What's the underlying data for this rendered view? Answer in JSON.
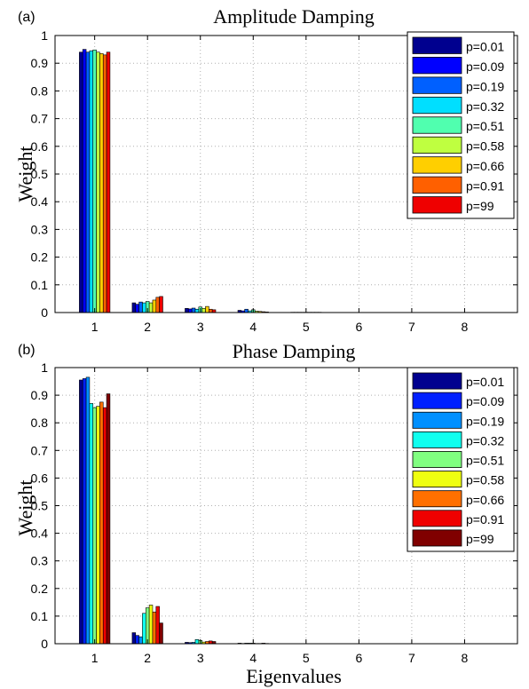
{
  "chart_data": [
    {
      "type": "bar",
      "panel_label": "(a)",
      "title": "Amplitude Damping",
      "xlabel": "",
      "ylabel": "Weight",
      "ylim": [
        0,
        1
      ],
      "yticks": [
        "0",
        "0.1",
        "0.2",
        "0.3",
        "0.4",
        "0.5",
        "0.6",
        "0.7",
        "0.8",
        "0.9",
        "1"
      ],
      "categories": [
        "1",
        "2",
        "3",
        "4",
        "5",
        "6",
        "7",
        "8"
      ],
      "grid": true,
      "legend_position": "top-right",
      "series": [
        {
          "name": "p=0.01",
          "color": "#00008f",
          "values": [
            0.94,
            0.035,
            0.015,
            0.008,
            0.001,
            0.0005,
            0.0003,
            0.0002
          ]
        },
        {
          "name": "p=0.09",
          "color": "#0000ff",
          "values": [
            0.95,
            0.03,
            0.013,
            0.006,
            0.001,
            0.0005,
            0.0003,
            0.0002
          ]
        },
        {
          "name": "p=0.19",
          "color": "#0060ff",
          "values": [
            0.94,
            0.038,
            0.016,
            0.012,
            0.001,
            0.0005,
            0.0003,
            0.0002
          ]
        },
        {
          "name": "p=0.32",
          "color": "#00dfff",
          "values": [
            0.945,
            0.035,
            0.012,
            0.006,
            0.001,
            0.0005,
            0.0003,
            0.0002
          ]
        },
        {
          "name": "p=0.51",
          "color": "#50ffaf",
          "values": [
            0.948,
            0.04,
            0.02,
            0.01,
            0.001,
            0.0005,
            0.0003,
            0.0002
          ]
        },
        {
          "name": "p=0.58",
          "color": "#bfff40",
          "values": [
            0.94,
            0.035,
            0.015,
            0.005,
            0.001,
            0.0005,
            0.0003,
            0.0002
          ]
        },
        {
          "name": "p=0.66",
          "color": "#ffcf00",
          "values": [
            0.935,
            0.045,
            0.022,
            0.004,
            0.001,
            0.0005,
            0.0003,
            0.0002
          ]
        },
        {
          "name": "p=0.91",
          "color": "#ff6000",
          "values": [
            0.93,
            0.055,
            0.012,
            0.003,
            0.001,
            0.0005,
            0.0003,
            0.0002
          ]
        },
        {
          "name": "p=99",
          "color": "#ef0000",
          "values": [
            0.94,
            0.058,
            0.01,
            0.002,
            0.001,
            0.0005,
            0.0003,
            0.0002
          ]
        }
      ]
    },
    {
      "type": "bar",
      "panel_label": "(b)",
      "title": "Phase Damping",
      "xlabel": "Eigenvalues",
      "ylabel": "Weight",
      "ylim": [
        0,
        1
      ],
      "yticks": [
        "0",
        "0.1",
        "0.2",
        "0.3",
        "0.4",
        "0.5",
        "0.6",
        "0.7",
        "0.8",
        "0.9",
        "1"
      ],
      "categories": [
        "1",
        "2",
        "3",
        "4",
        "5",
        "6",
        "7",
        "8"
      ],
      "grid": true,
      "legend_position": "top-right",
      "series": [
        {
          "name": "p=0.01",
          "color": "#00008f",
          "values": [
            0.955,
            0.04,
            0.005,
            0.002,
            0.0005,
            0.0003,
            0.0002,
            0.0001
          ]
        },
        {
          "name": "p=0.09",
          "color": "#0020ff",
          "values": [
            0.96,
            0.03,
            0.004,
            0.001,
            0.0005,
            0.0003,
            0.0002,
            0.0001
          ]
        },
        {
          "name": "p=0.19",
          "color": "#0090ff",
          "values": [
            0.965,
            0.025,
            0.005,
            0.002,
            0.0005,
            0.0003,
            0.0002,
            0.0001
          ]
        },
        {
          "name": "p=0.32",
          "color": "#10ffef",
          "values": [
            0.87,
            0.11,
            0.015,
            0.002,
            0.0005,
            0.0003,
            0.0002,
            0.0001
          ]
        },
        {
          "name": "p=0.51",
          "color": "#80ff80",
          "values": [
            0.855,
            0.13,
            0.012,
            0.002,
            0.0005,
            0.0003,
            0.0002,
            0.0001
          ]
        },
        {
          "name": "p=0.58",
          "color": "#efff10",
          "values": [
            0.86,
            0.14,
            0.006,
            0.001,
            0.0005,
            0.0003,
            0.0002,
            0.0001
          ]
        },
        {
          "name": "p=0.66",
          "color": "#ff7000",
          "values": [
            0.875,
            0.115,
            0.008,
            0.001,
            0.0005,
            0.0003,
            0.0002,
            0.0001
          ]
        },
        {
          "name": "p=0.91",
          "color": "#ef0000",
          "values": [
            0.855,
            0.135,
            0.01,
            0.002,
            0.0005,
            0.0003,
            0.0002,
            0.0001
          ]
        },
        {
          "name": "p=99",
          "color": "#800000",
          "values": [
            0.905,
            0.075,
            0.008,
            0.001,
            0.0005,
            0.0003,
            0.0002,
            0.0001
          ]
        }
      ]
    }
  ]
}
